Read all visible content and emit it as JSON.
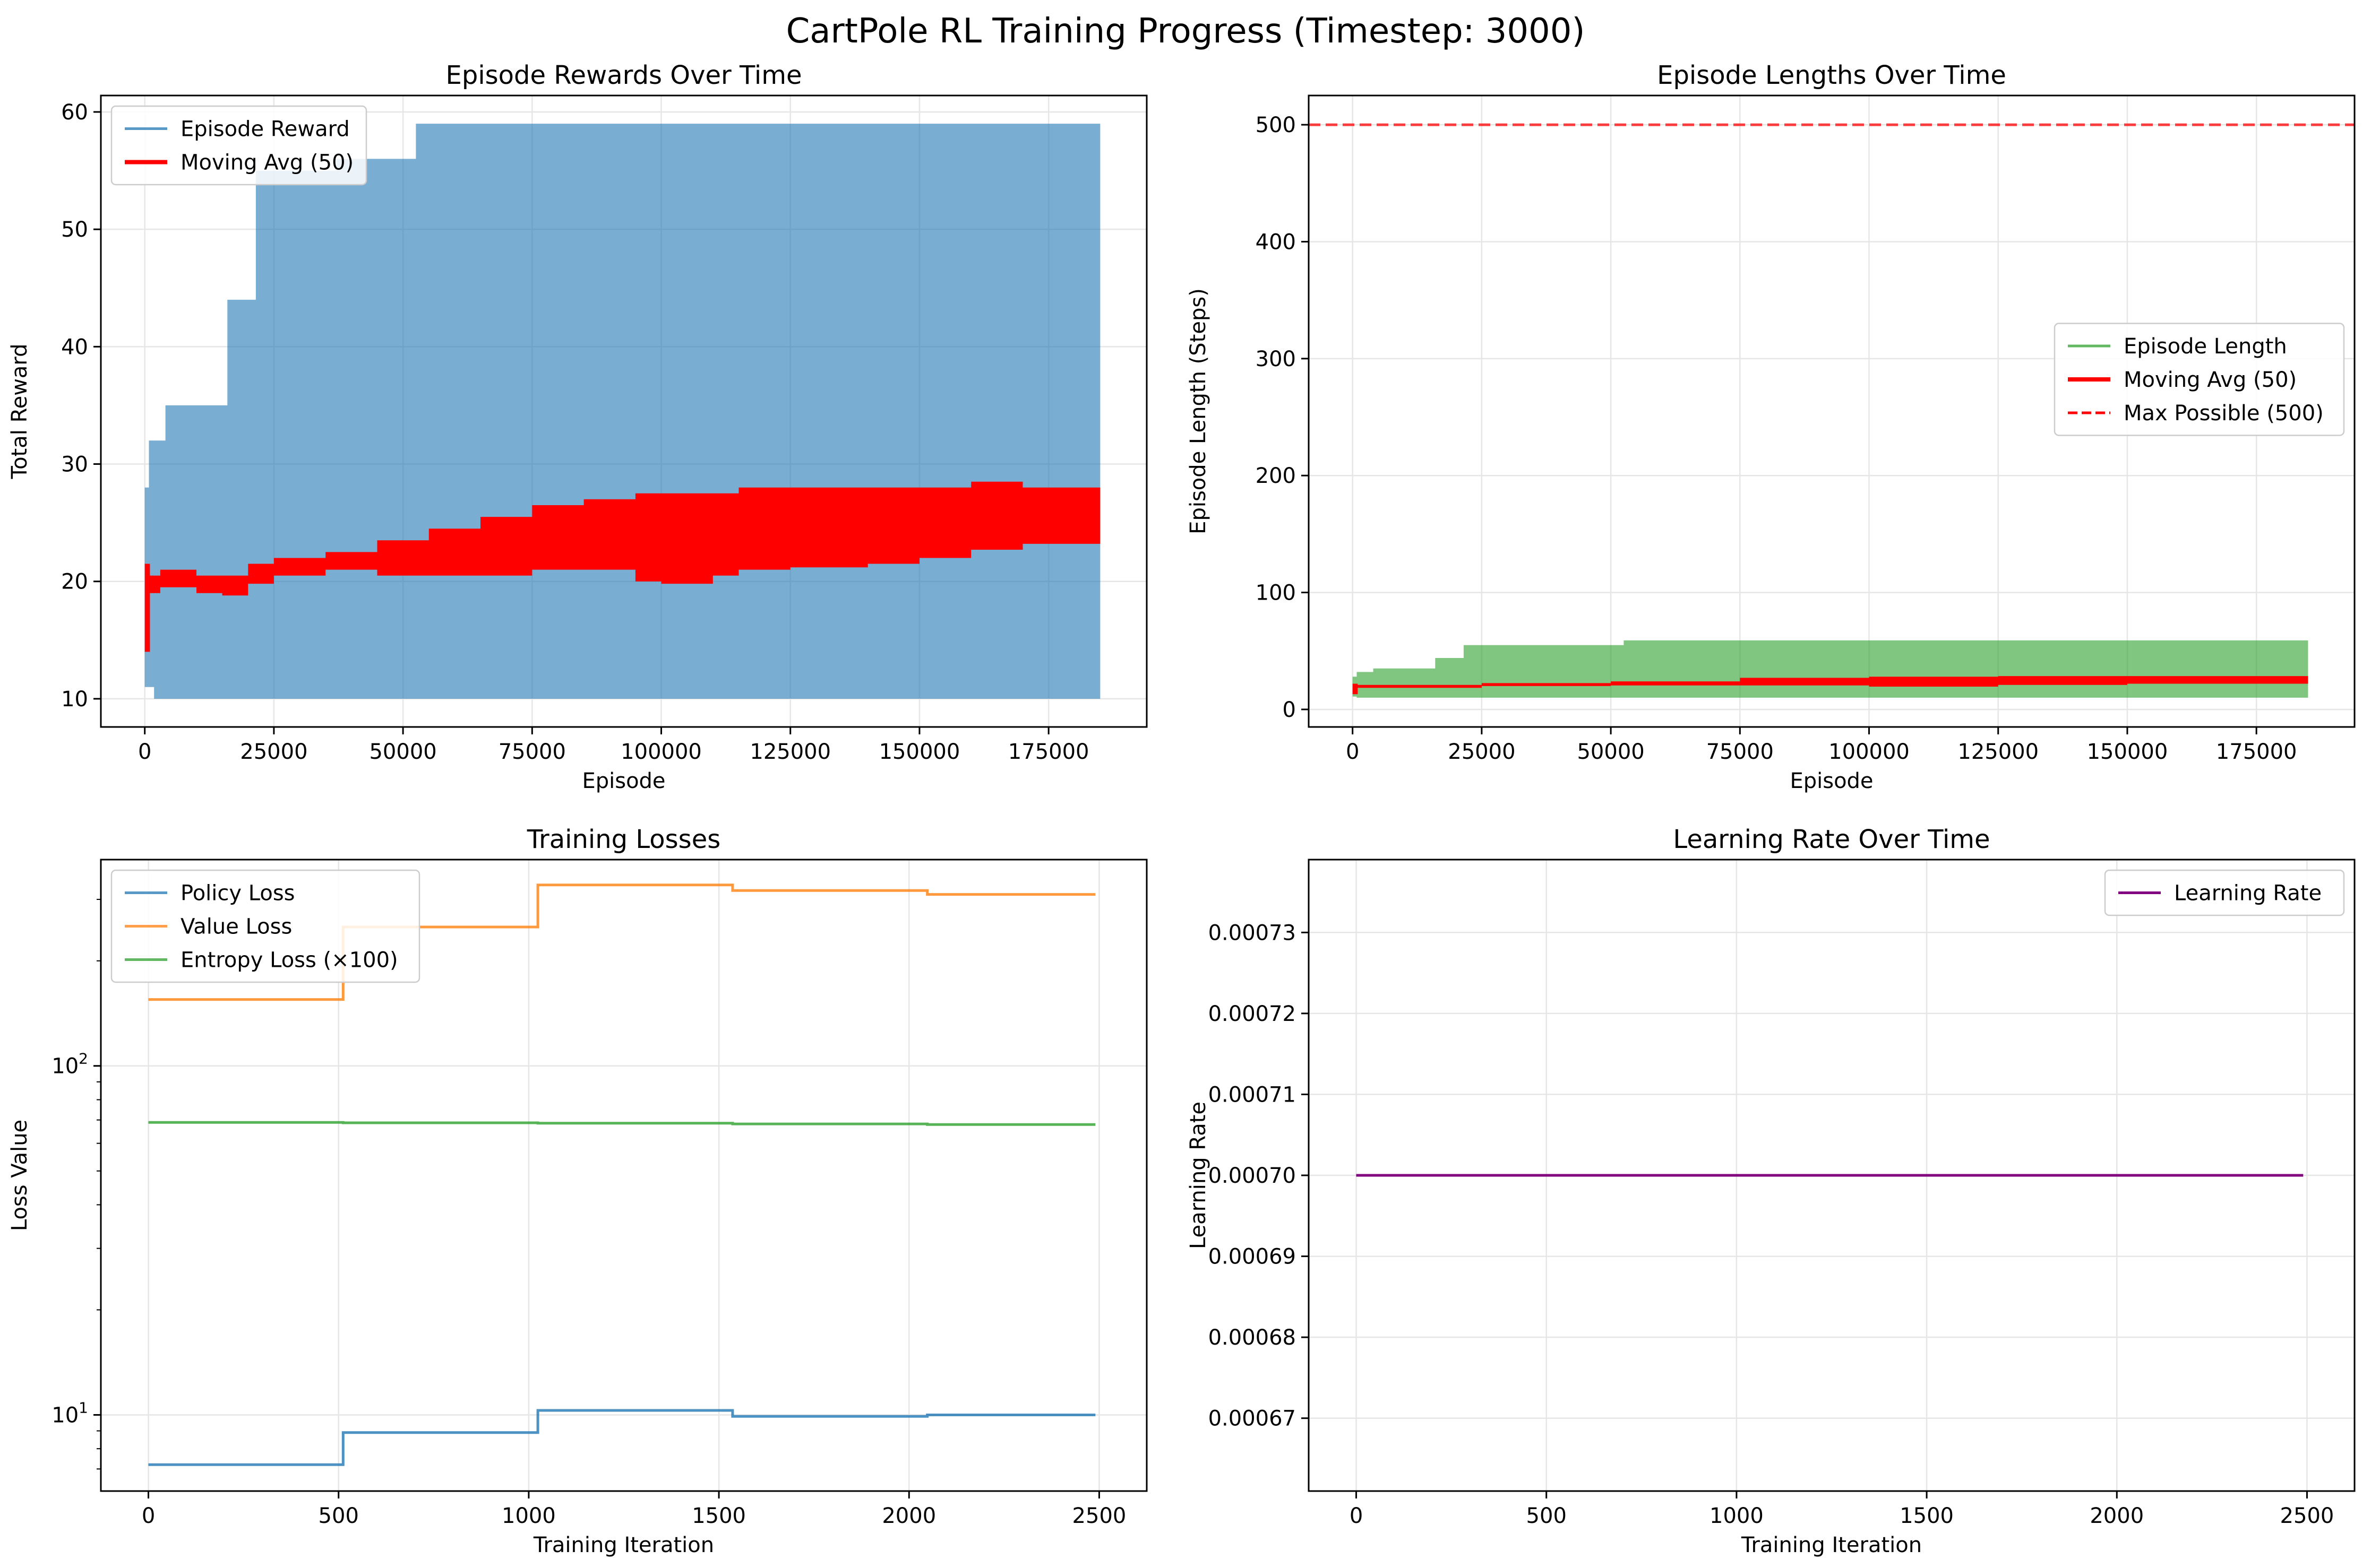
{
  "figure": {
    "title": "CartPole RL Training Progress (Timestep: 3000)"
  },
  "colors": {
    "reward": "#1f77b4",
    "length": "#2ca02c",
    "moving_avg": "#ff0000",
    "max_line": "#ff0000",
    "policy_loss": "#1f77b4",
    "value_loss": "#ff7f0e",
    "entropy_loss": "#2ca02c",
    "learning_rate": "#800080",
    "grid": "#e6e6e6"
  },
  "chart_data": [
    {
      "type": "area",
      "title": "Episode Rewards Over Time",
      "xlabel": "Episode",
      "ylabel": "Total Reward",
      "xlim": [
        -8500,
        194000
      ],
      "ylim": [
        7.6,
        61.4
      ],
      "xticks": [
        0,
        25000,
        50000,
        75000,
        100000,
        125000,
        150000,
        175000
      ],
      "yticks": [
        10,
        20,
        30,
        40,
        50,
        60
      ],
      "grid": true,
      "legend": "top-left",
      "series": [
        {
          "name": "Episode Reward",
          "kind": "band",
          "color": "#1f77b4",
          "x": [
            0,
            800,
            1800,
            4000,
            16000,
            21500,
            37000,
            52500,
            185000
          ],
          "upper": [
            28,
            32,
            32,
            35,
            44,
            55,
            56,
            59,
            59
          ],
          "lower": [
            11,
            11,
            10,
            10,
            10,
            10,
            10,
            10,
            10
          ]
        },
        {
          "name": "Moving Avg (50)",
          "kind": "band",
          "color": "#ff0000",
          "x": [
            0,
            1000,
            3000,
            10000,
            15000,
            20000,
            25000,
            35000,
            45000,
            55000,
            65000,
            75000,
            85000,
            95000,
            100000,
            110000,
            115000,
            125000,
            140000,
            150000,
            160000,
            170000,
            185000
          ],
          "upper": [
            21.5,
            20.5,
            21,
            20.5,
            20.5,
            21.5,
            22,
            22.5,
            23.5,
            24.5,
            25.5,
            26.5,
            27,
            27.5,
            27.5,
            27.5,
            28,
            28,
            28,
            28,
            28.5,
            28,
            28
          ],
          "lower": [
            14,
            19,
            19.5,
            19,
            18.8,
            19.8,
            20.5,
            21,
            20.5,
            20.5,
            20.5,
            21,
            21,
            20,
            19.8,
            20.5,
            21,
            21.2,
            21.5,
            22,
            22.7,
            23.2,
            24
          ]
        }
      ]
    },
    {
      "type": "area",
      "title": "Episode Lengths Over Time",
      "xlabel": "Episode",
      "ylabel": "Episode Length (Steps)",
      "xlim": [
        -8500,
        194000
      ],
      "ylim": [
        -15,
        525
      ],
      "xticks": [
        0,
        25000,
        50000,
        75000,
        100000,
        125000,
        150000,
        175000
      ],
      "yticks": [
        0,
        100,
        200,
        300,
        400,
        500
      ],
      "grid": true,
      "legend": "center-right",
      "series": [
        {
          "name": "Episode Length",
          "kind": "band",
          "color": "#2ca02c",
          "x": [
            0,
            800,
            4000,
            16000,
            21500,
            52500,
            185000
          ],
          "upper": [
            28,
            32,
            35,
            44,
            55,
            59,
            59
          ],
          "lower": [
            11,
            10,
            10,
            10,
            10,
            10,
            10
          ]
        },
        {
          "name": "Moving Avg (50)",
          "kind": "band",
          "color": "#ff0000",
          "x": [
            0,
            1000,
            15000,
            25000,
            50000,
            75000,
            100000,
            125000,
            150000,
            185000
          ],
          "upper": [
            22,
            21,
            21,
            22.5,
            24,
            27,
            28,
            28.5,
            28.5,
            28.5
          ],
          "lower": [
            13,
            18.5,
            18.5,
            20,
            20.5,
            20.5,
            19.5,
            21,
            22,
            24
          ]
        },
        {
          "name": "Max Possible (500)",
          "kind": "hline",
          "color": "#ff0000",
          "dashed": true,
          "y": 500
        }
      ]
    },
    {
      "type": "line",
      "title": "Training Losses",
      "xlabel": "Training Iteration",
      "ylabel": "Loss Value",
      "yscale": "log",
      "xlim": [
        -125,
        2625
      ],
      "ylim": [
        6.05,
        390
      ],
      "xticks": [
        0,
        500,
        1000,
        1500,
        2000,
        2500
      ],
      "yticks": [
        10,
        100
      ],
      "ytick_labels": [
        "10^1",
        "10^2"
      ],
      "grid": true,
      "legend": "top-left",
      "series": [
        {
          "name": "Policy Loss",
          "color": "#1f77b4",
          "step": true,
          "x": [
            0,
            512,
            1024,
            1536,
            2048,
            2490
          ],
          "y": [
            7.2,
            8.9,
            10.3,
            9.9,
            10.0,
            10.0
          ]
        },
        {
          "name": "Value Loss",
          "color": "#ff7f0e",
          "step": true,
          "x": [
            0,
            512,
            1024,
            1536,
            2048,
            2490
          ],
          "y": [
            155,
            250,
            330,
            318,
            310,
            310
          ]
        },
        {
          "name": "Entropy Loss (×100)",
          "color": "#2ca02c",
          "step": true,
          "x": [
            0,
            512,
            1024,
            1536,
            2048,
            2490
          ],
          "y": [
            68.9,
            68.7,
            68.5,
            68.2,
            67.9,
            67.9
          ]
        }
      ]
    },
    {
      "type": "line",
      "title": "Learning Rate Over Time",
      "xlabel": "Training Iteration",
      "ylabel": "Learning Rate",
      "xlim": [
        -125,
        2625
      ],
      "ylim": [
        0.000661,
        0.000739
      ],
      "xticks": [
        0,
        500,
        1000,
        1500,
        2000,
        2500
      ],
      "yticks": [
        0.00067,
        0.00068,
        0.00069,
        0.0007,
        0.00071,
        0.00072,
        0.00073
      ],
      "ytick_labels": [
        "0.00067",
        "0.00068",
        "0.00069",
        "0.00070",
        "0.00071",
        "0.00072",
        "0.00073"
      ],
      "grid": true,
      "legend": "top-right",
      "series": [
        {
          "name": "Learning Rate",
          "color": "#800080",
          "x": [
            0,
            2490
          ],
          "y": [
            0.0007,
            0.0007
          ]
        }
      ]
    }
  ]
}
